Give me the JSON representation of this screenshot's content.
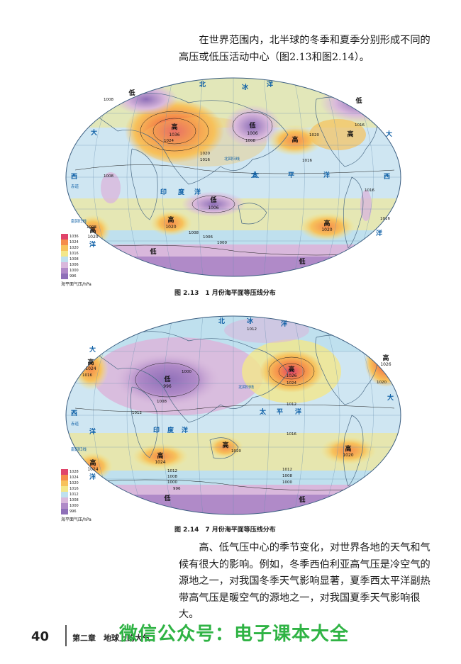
{
  "paragraph1": "在世界范围内，北半球的冬季和夏季分别形成不同的高压或低压活动中心（图2.13和图2.14）。",
  "paragraph2": "高、低气压中心的季节变化，对世界各地的天气和气候有很大的影响。例如，冬季西伯利亚高气压是冷空气的源地之一，对我国冬季天气影响显著，夏季西太平洋副热带高气压是暖空气的源地之一，对我国夏季天气影响很大。",
  "figure1": {
    "caption": "图 2.13　1 月份海平面等压线分布",
    "legend_values": [
      "1036",
      "1024",
      "1020",
      "1016",
      "1008",
      "1006",
      "1000",
      "996"
    ],
    "legend_colors": [
      "#e0446a",
      "#f58c4a",
      "#f7c25c",
      "#f3e78a",
      "#bfe0ee",
      "#d9b8dc",
      "#b08ac8",
      "#8e6fb8"
    ],
    "legend_unit": "海平面气压/hPa",
    "ocean_labels": [
      "北",
      "冰",
      "洋",
      "大",
      "西",
      "洋",
      "太",
      "平",
      "洋",
      "印",
      "度",
      "洋",
      "太",
      "西",
      "洋",
      "大"
    ],
    "line_labels": [
      "北回归线",
      "赤道",
      "南回归线"
    ],
    "centers": [
      {
        "kind": "高",
        "value": "1036"
      },
      {
        "kind": "低",
        "value": "1006"
      },
      {
        "kind": "低",
        "value": ""
      },
      {
        "kind": "低",
        "value": ""
      },
      {
        "kind": "高",
        "value": ""
      },
      {
        "kind": "高",
        "value": ""
      },
      {
        "kind": "低",
        "value": "1006"
      },
      {
        "kind": "高",
        "value": "1020"
      },
      {
        "kind": "高",
        "value": "1020"
      },
      {
        "kind": "高",
        "value": "1020"
      },
      {
        "kind": "低",
        "value": ""
      },
      {
        "kind": "低",
        "value": ""
      }
    ],
    "isobars": [
      "1008",
      "1024",
      "1008",
      "1016",
      "1016",
      "1020",
      "1008",
      "1020",
      "1016",
      "1016",
      "1016",
      "1008",
      "1000",
      "1008",
      "1006"
    ]
  },
  "figure2": {
    "caption": "图 2.14　7 月份海平面等压线分布",
    "legend_values": [
      "1028",
      "1024",
      "1020",
      "1016",
      "1012",
      "1008",
      "1000",
      "996"
    ],
    "legend_colors": [
      "#e0446a",
      "#f58c4a",
      "#f7c25c",
      "#f3e78a",
      "#bfe0ee",
      "#d9b8dc",
      "#b08ac8",
      "#8e6fb8"
    ],
    "legend_unit": "海平面气压/hPa",
    "ocean_labels": [
      "北",
      "冰",
      "洋",
      "大",
      "西",
      "洋",
      "太",
      "平",
      "洋",
      "印",
      "度",
      "洋",
      "洋",
      "大"
    ],
    "line_labels": [
      "北回归线",
      "赤道",
      "南回归线"
    ],
    "centers": [
      {
        "kind": "高",
        "value": "1024"
      },
      {
        "kind": "低",
        "value": "996"
      },
      {
        "kind": "高",
        "value": "1026"
      },
      {
        "kind": "高",
        "value": "1026"
      },
      {
        "kind": "高",
        "value": "1024"
      },
      {
        "kind": "高",
        "value": "1024"
      },
      {
        "kind": "高",
        "value": ""
      },
      {
        "kind": "高",
        "value": "1020"
      },
      {
        "kind": "低",
        "value": ""
      },
      {
        "kind": "低",
        "value": ""
      }
    ],
    "isobars": [
      "1012",
      "1016",
      "1000",
      "1008",
      "1012",
      "1020",
      "1024",
      "1012",
      "1016",
      "1020",
      "1012",
      "1008",
      "1000",
      "996",
      "1000",
      "1008",
      "1012"
    ]
  },
  "footer": {
    "page_number": "40",
    "chapter": "第二章　地球上的大气",
    "watermark": "微信公众号：电子课本大全"
  }
}
